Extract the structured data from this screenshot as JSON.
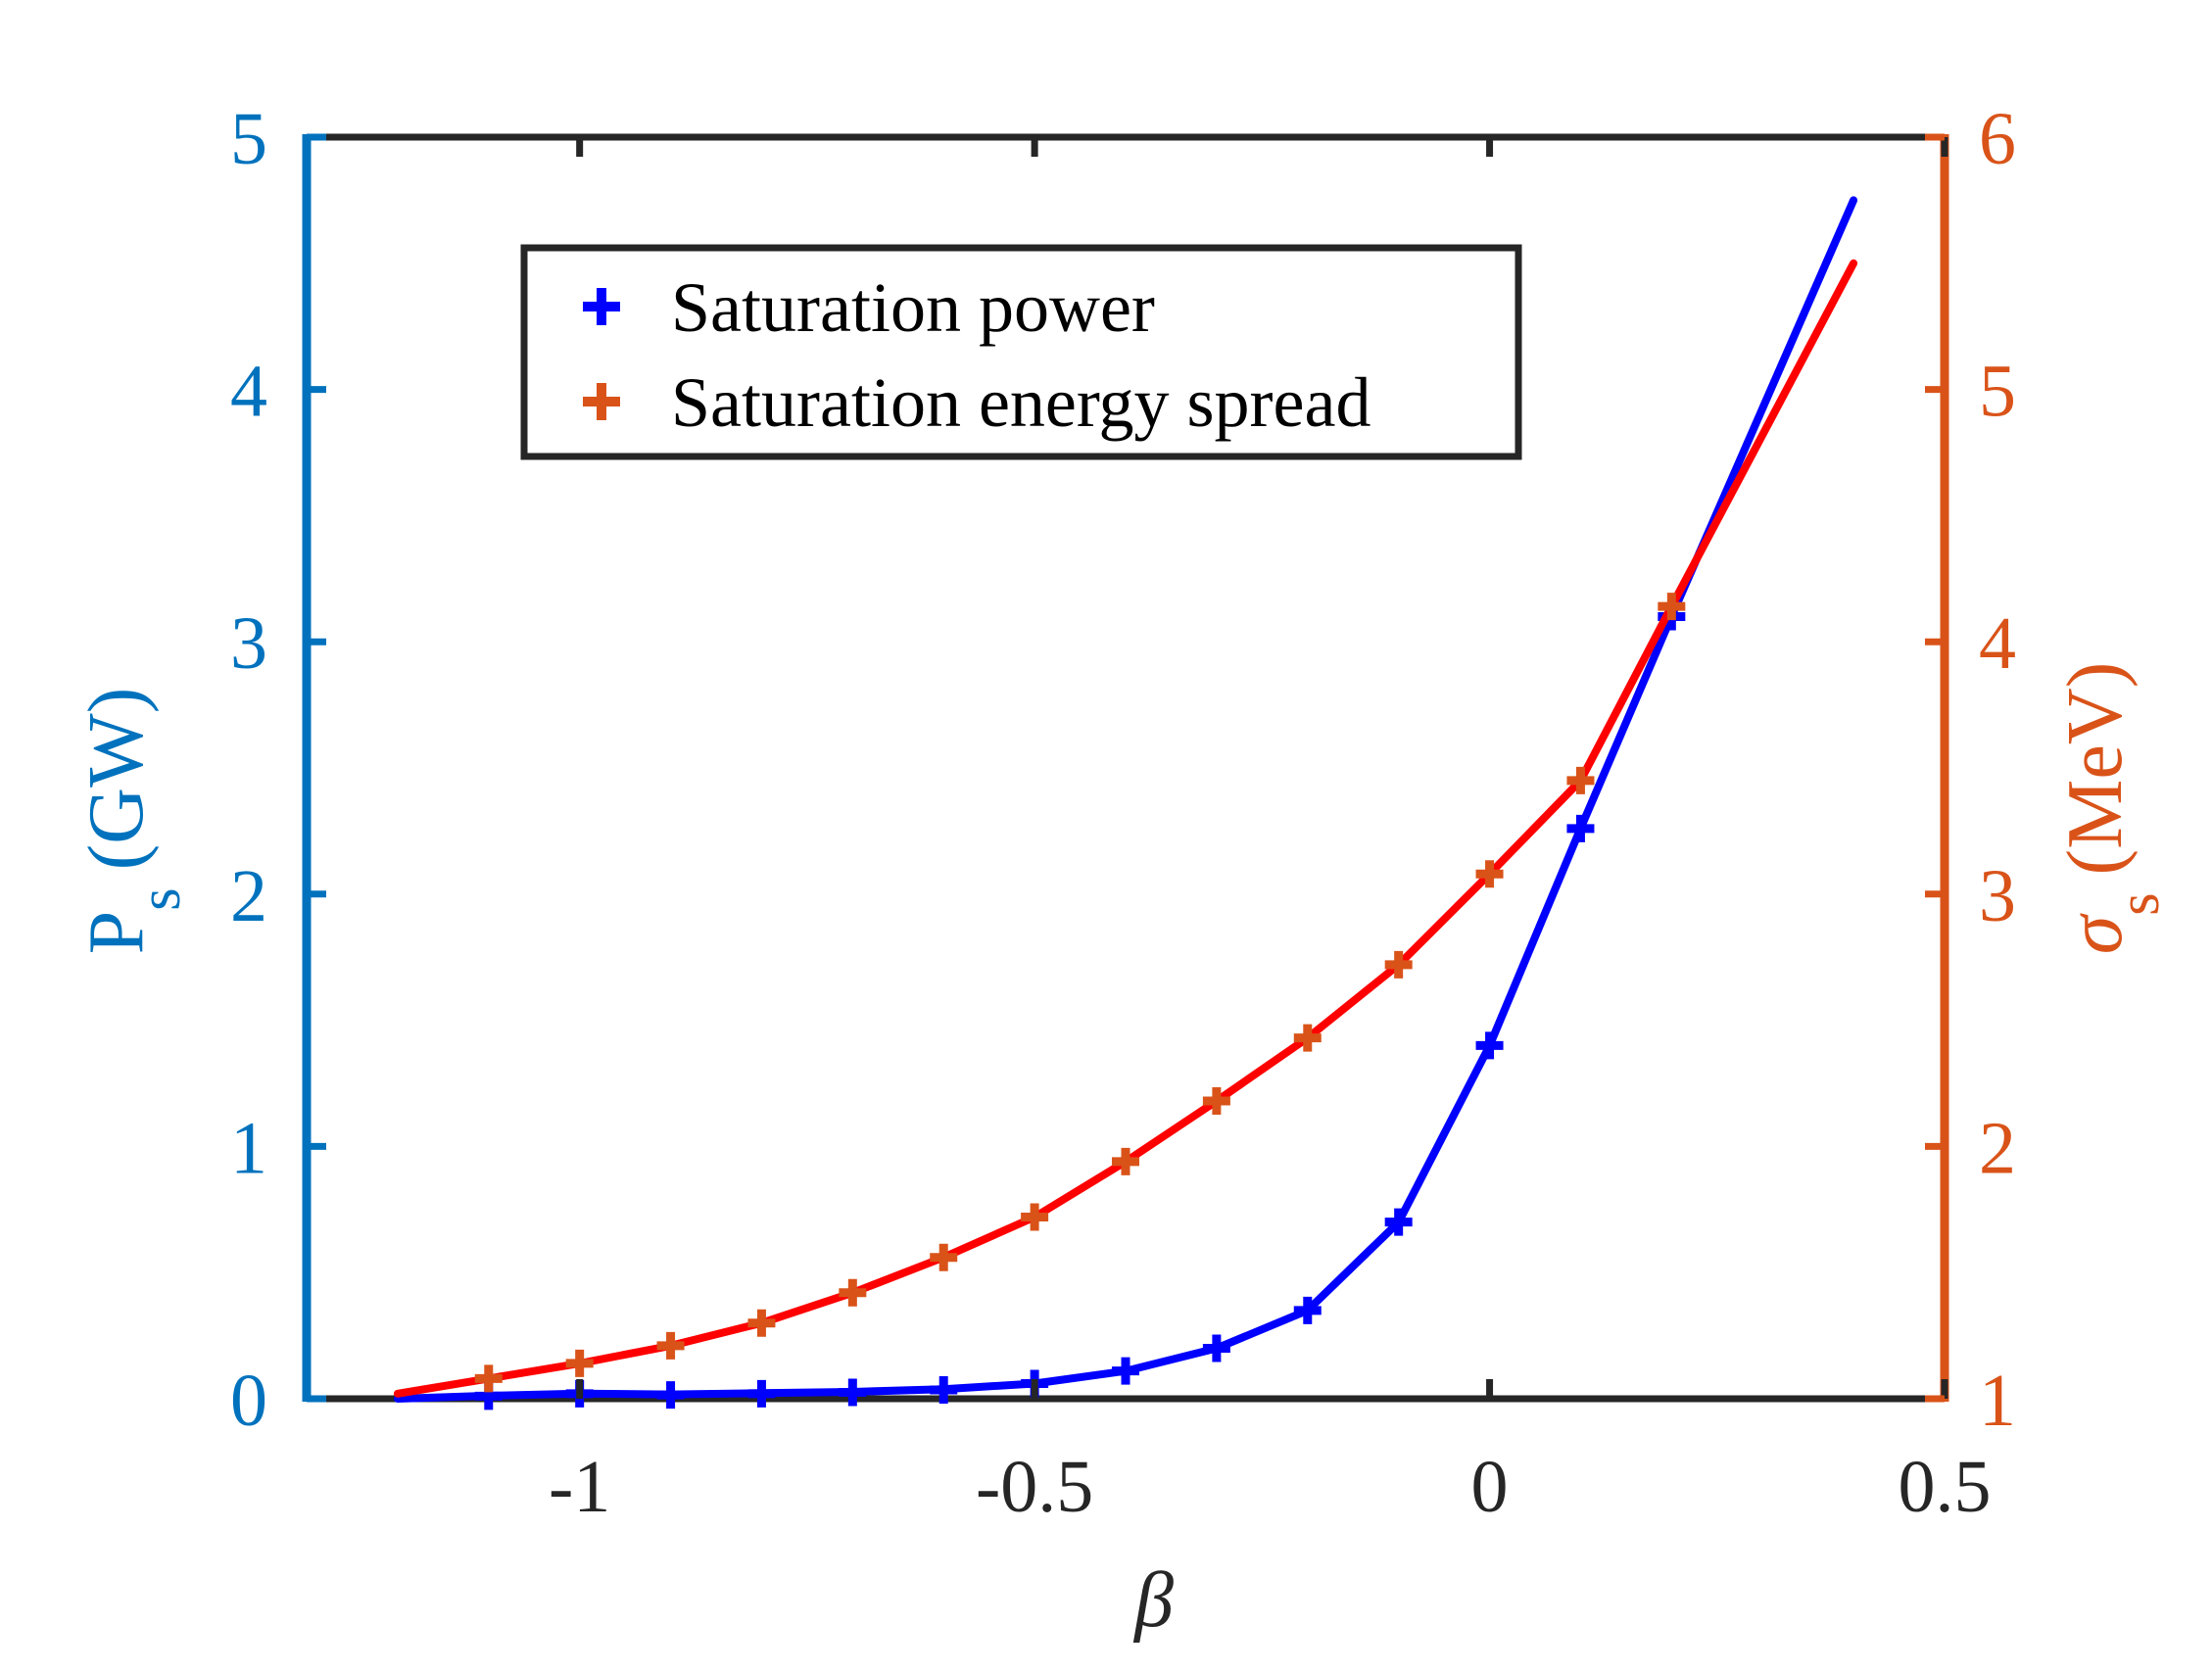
{
  "chart_data": {
    "type": "line",
    "x_axis": {
      "label": "β",
      "range": [
        -1.3,
        0.5
      ],
      "ticks": [
        -1,
        -0.5,
        0,
        0.5
      ],
      "tick_labels": [
        "-1",
        "-0.5",
        "0",
        "0.5"
      ]
    },
    "y_left": {
      "label": "P",
      "label_sub": "s",
      "label_unit": "(GW)",
      "range": [
        0,
        5
      ],
      "ticks": [
        0,
        1,
        2,
        3,
        4,
        5
      ],
      "tick_labels": [
        "0",
        "1",
        "2",
        "3",
        "4",
        "5"
      ],
      "color": "#0072BD"
    },
    "y_right": {
      "label": "σ",
      "label_sub": "s",
      "label_unit": "(MeV)",
      "range": [
        1,
        6
      ],
      "ticks": [
        1,
        2,
        3,
        4,
        5,
        6
      ],
      "tick_labels": [
        "1",
        "2",
        "3",
        "4",
        "5",
        "6"
      ],
      "color": "#D95319"
    },
    "series": [
      {
        "name": "Saturation power",
        "axis": "left",
        "marker_color": "#0000FF",
        "line_color": "#0000FF",
        "points_x": [
          -1.1,
          -1.0,
          -0.9,
          -0.8,
          -0.7,
          -0.6,
          -0.5,
          -0.4,
          -0.3,
          -0.2,
          -0.1,
          0.0,
          0.1,
          0.2
        ],
        "points_y": [
          0.01,
          0.02,
          0.015,
          0.02,
          0.025,
          0.035,
          0.06,
          0.11,
          0.2,
          0.35,
          0.7,
          1.4,
          2.26,
          3.1
        ],
        "line_x": [
          -1.2,
          -1.1,
          -1.0,
          -0.9,
          -0.8,
          -0.7,
          -0.6,
          -0.5,
          -0.4,
          -0.3,
          -0.2,
          -0.1,
          0.0,
          0.1,
          0.2,
          0.4
        ],
        "line_y": [
          0.0,
          0.012,
          0.02,
          0.017,
          0.022,
          0.027,
          0.038,
          0.06,
          0.11,
          0.2,
          0.35,
          0.7,
          1.4,
          2.26,
          3.1,
          4.75
        ]
      },
      {
        "name": "Saturation energy spread",
        "axis": "right",
        "marker_color": "#D95319",
        "line_color": "#FF0000",
        "points_x": [
          -1.1,
          -1.0,
          -0.9,
          -0.8,
          -0.7,
          -0.6,
          -0.5,
          -0.4,
          -0.3,
          -0.2,
          -0.1,
          0.0,
          0.1,
          0.2
        ],
        "points_y": [
          1.08,
          1.14,
          1.21,
          1.3,
          1.42,
          1.56,
          1.72,
          1.94,
          2.18,
          2.43,
          2.72,
          3.08,
          3.45,
          4.14
        ],
        "line_x": [
          -1.2,
          -1.1,
          -1.0,
          -0.9,
          -0.8,
          -0.7,
          -0.6,
          -0.5,
          -0.4,
          -0.3,
          -0.2,
          -0.1,
          0.0,
          0.1,
          0.2,
          0.4
        ],
        "line_y": [
          1.02,
          1.08,
          1.14,
          1.21,
          1.3,
          1.42,
          1.56,
          1.72,
          1.94,
          2.18,
          2.43,
          2.72,
          3.08,
          3.45,
          4.14,
          5.5
        ]
      }
    ],
    "legend": {
      "position": "top-left-inside",
      "entries": [
        "Saturation power",
        "Saturation energy spread"
      ]
    }
  }
}
